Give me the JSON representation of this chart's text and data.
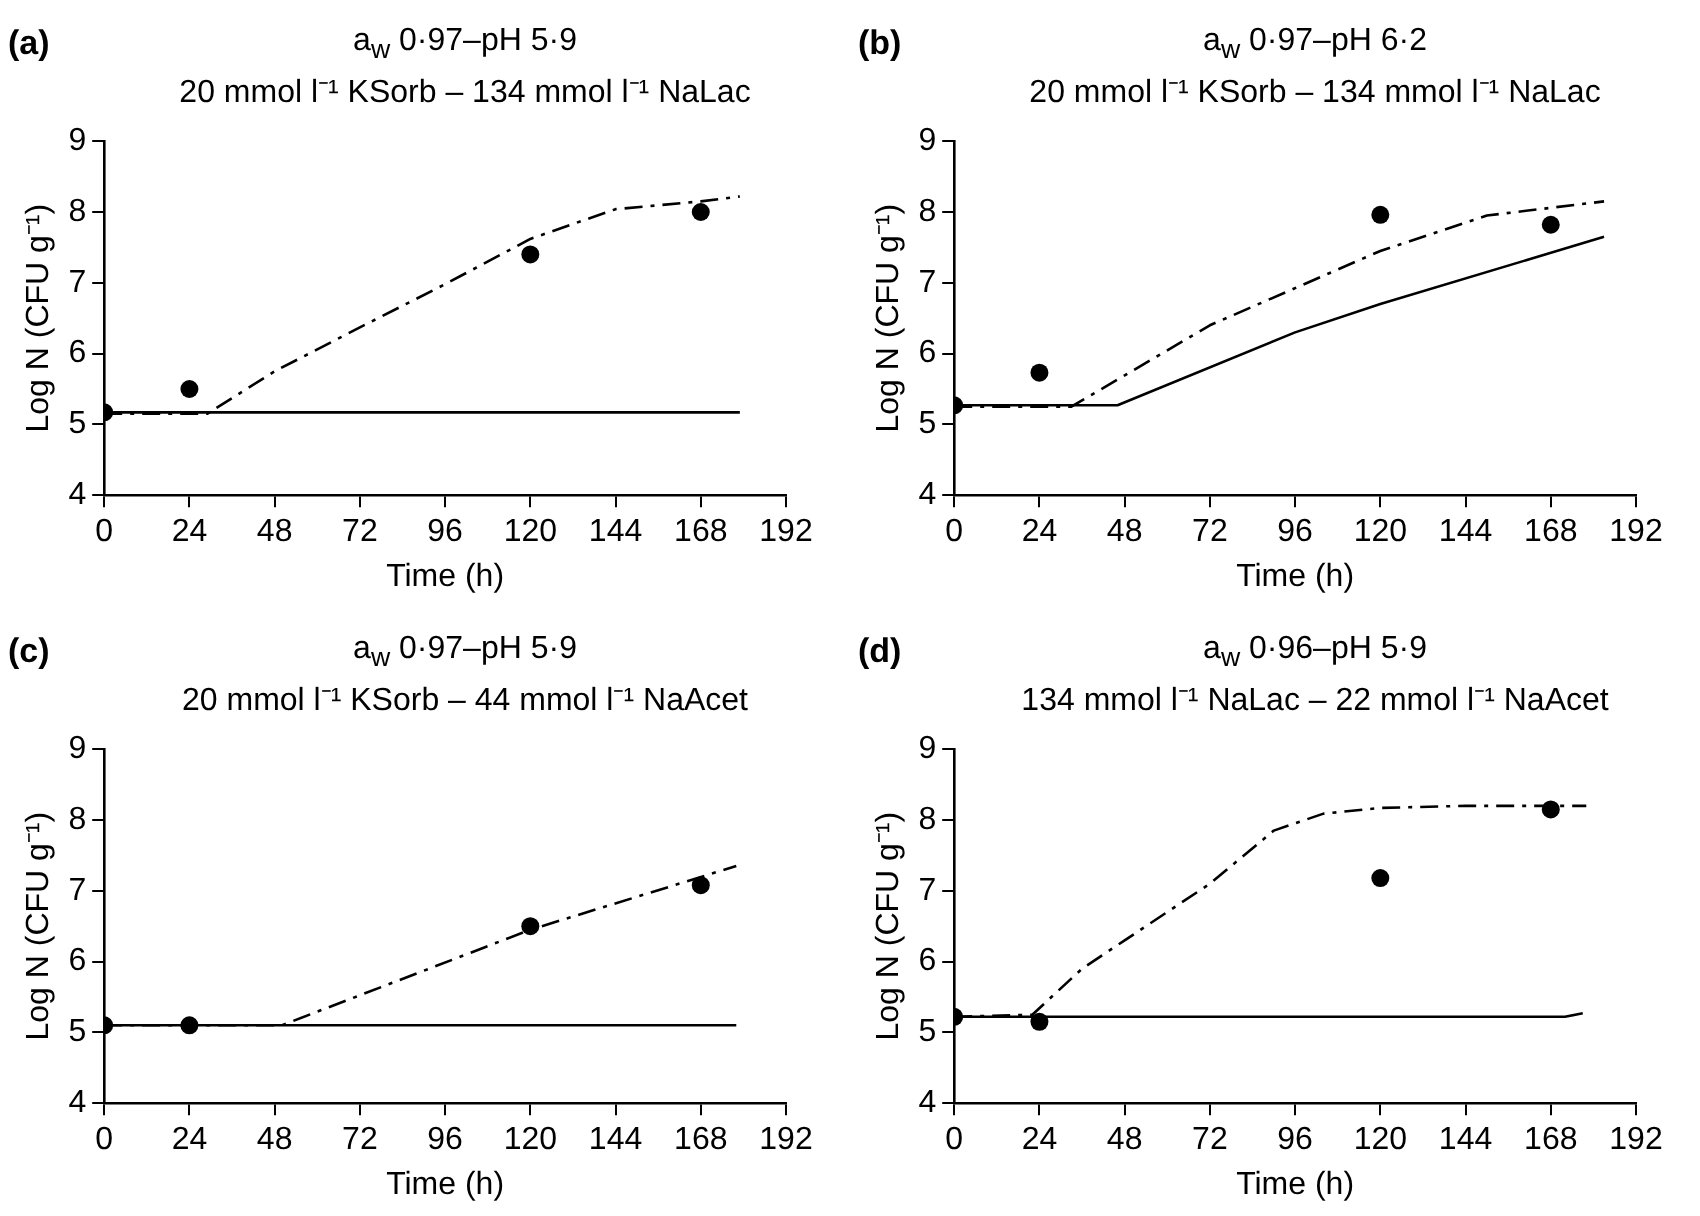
{
  "chart_data": [
    {
      "type": "line",
      "annotations": [
        "(a)"
      ],
      "title": "a$_{w}$ 0·97–pH 5·9",
      "subtitle": "20 mmol l⁻¹ KSorb – 134 mmol l⁻¹ NaLac",
      "xlabel": "Time (h)",
      "ylabel": "Log N (CFU g⁻¹)",
      "xlim": [
        0,
        192
      ],
      "xticks": [
        0,
        24,
        48,
        72,
        96,
        120,
        144,
        168,
        192
      ],
      "ylim": [
        4,
        9
      ],
      "yticks": [
        4,
        5,
        6,
        7,
        8,
        9
      ],
      "series": [
        {
          "type": "scatter",
          "color": "#000000",
          "marker": "circle",
          "x": [
            0,
            24,
            120,
            168
          ],
          "values": [
            5.17,
            5.5,
            7.4,
            8.0
          ]
        },
        {
          "color": "#000000",
          "marker": "none",
          "line_style": "solid",
          "x": [
            0,
            179
          ],
          "values": [
            5.17,
            5.17
          ]
        },
        {
          "color": "#000000",
          "marker": "none",
          "line_style": "dashed",
          "x": [
            0,
            29,
            48,
            72,
            96,
            120,
            144,
            168,
            179
          ],
          "values": [
            5.15,
            5.15,
            5.75,
            6.37,
            6.98,
            7.62,
            8.04,
            8.15,
            8.22
          ]
        }
      ]
    },
    {
      "type": "line",
      "annotations": [
        "(b)"
      ],
      "title": "a$_{w}$ 0·97–pH 6·2",
      "subtitle": "20 mmol l⁻¹ KSorb – 134 mmol l⁻¹ NaLac",
      "xlabel": "Time (h)",
      "ylabel": "Log N (CFU g⁻¹)",
      "xlim": [
        0,
        192
      ],
      "xticks": [
        0,
        24,
        48,
        72,
        96,
        120,
        144,
        168,
        192
      ],
      "ylim": [
        4,
        9
      ],
      "yticks": [
        4,
        5,
        6,
        7,
        8,
        9
      ],
      "series": [
        {
          "type": "scatter",
          "color": "#000000",
          "marker": "circle",
          "x": [
            0,
            24,
            120,
            168
          ],
          "values": [
            5.27,
            5.73,
            7.96,
            7.82
          ]
        },
        {
          "color": "#000000",
          "marker": "none",
          "line_style": "solid",
          "x": [
            0,
            46,
            96,
            120,
            183
          ],
          "values": [
            5.27,
            5.27,
            6.3,
            6.7,
            7.65
          ]
        },
        {
          "color": "#000000",
          "marker": "none",
          "line_style": "dashed",
          "x": [
            0,
            33,
            72,
            120,
            150,
            183
          ],
          "values": [
            5.25,
            5.25,
            6.4,
            7.45,
            7.95,
            8.15
          ]
        }
      ]
    },
    {
      "type": "line",
      "annotations": [
        "(c)"
      ],
      "title": "a$_{w}$ 0·97–pH 5·9",
      "subtitle": "20 mmol l⁻¹ KSorb – 44 mmol l⁻¹ NaAcet",
      "xlabel": "Time (h)",
      "ylabel": "Log N (CFU g⁻¹)",
      "xlim": [
        0,
        192
      ],
      "xticks": [
        0,
        24,
        48,
        72,
        96,
        120,
        144,
        168,
        192
      ],
      "ylim": [
        4,
        9
      ],
      "yticks": [
        4,
        5,
        6,
        7,
        8,
        9
      ],
      "series": [
        {
          "type": "scatter",
          "color": "#000000",
          "marker": "circle",
          "x": [
            0,
            24,
            120,
            168
          ],
          "values": [
            5.1,
            5.1,
            6.5,
            7.08
          ]
        },
        {
          "color": "#000000",
          "marker": "none",
          "line_style": "solid",
          "x": [
            0,
            178
          ],
          "values": [
            5.1,
            5.1
          ]
        },
        {
          "color": "#000000",
          "marker": "none",
          "line_style": "dashed",
          "x": [
            0,
            50,
            120,
            178
          ],
          "values": [
            5.1,
            5.1,
            6.45,
            7.35
          ]
        }
      ]
    },
    {
      "type": "line",
      "annotations": [
        "(d)"
      ],
      "title": "a$_{w}$ 0·96–pH 5·9",
      "subtitle": "134 mmol l⁻¹ NaLac – 22 mmol l⁻¹ NaAcet",
      "xlabel": "Time (h)",
      "ylabel": "Log N (CFU g⁻¹)",
      "xlim": [
        0,
        192
      ],
      "xticks": [
        0,
        24,
        48,
        72,
        96,
        120,
        144,
        168,
        192
      ],
      "ylim": [
        4,
        9
      ],
      "yticks": [
        4,
        5,
        6,
        7,
        8,
        9
      ],
      "series": [
        {
          "type": "scatter",
          "color": "#000000",
          "marker": "circle",
          "x": [
            0,
            24,
            120,
            168
          ],
          "values": [
            5.22,
            5.15,
            7.18,
            8.15
          ]
        },
        {
          "color": "#000000",
          "marker": "none",
          "line_style": "solid",
          "x": [
            0,
            172,
            177
          ],
          "values": [
            5.22,
            5.22,
            5.27
          ]
        },
        {
          "color": "#000000",
          "marker": "none",
          "line_style": "dashed",
          "x": [
            0,
            22,
            36,
            48,
            60,
            72,
            90,
            104,
            120,
            144,
            178
          ],
          "values": [
            5.22,
            5.25,
            5.9,
            6.3,
            6.7,
            7.1,
            7.85,
            8.09,
            8.17,
            8.2,
            8.2
          ]
        }
      ]
    }
  ]
}
